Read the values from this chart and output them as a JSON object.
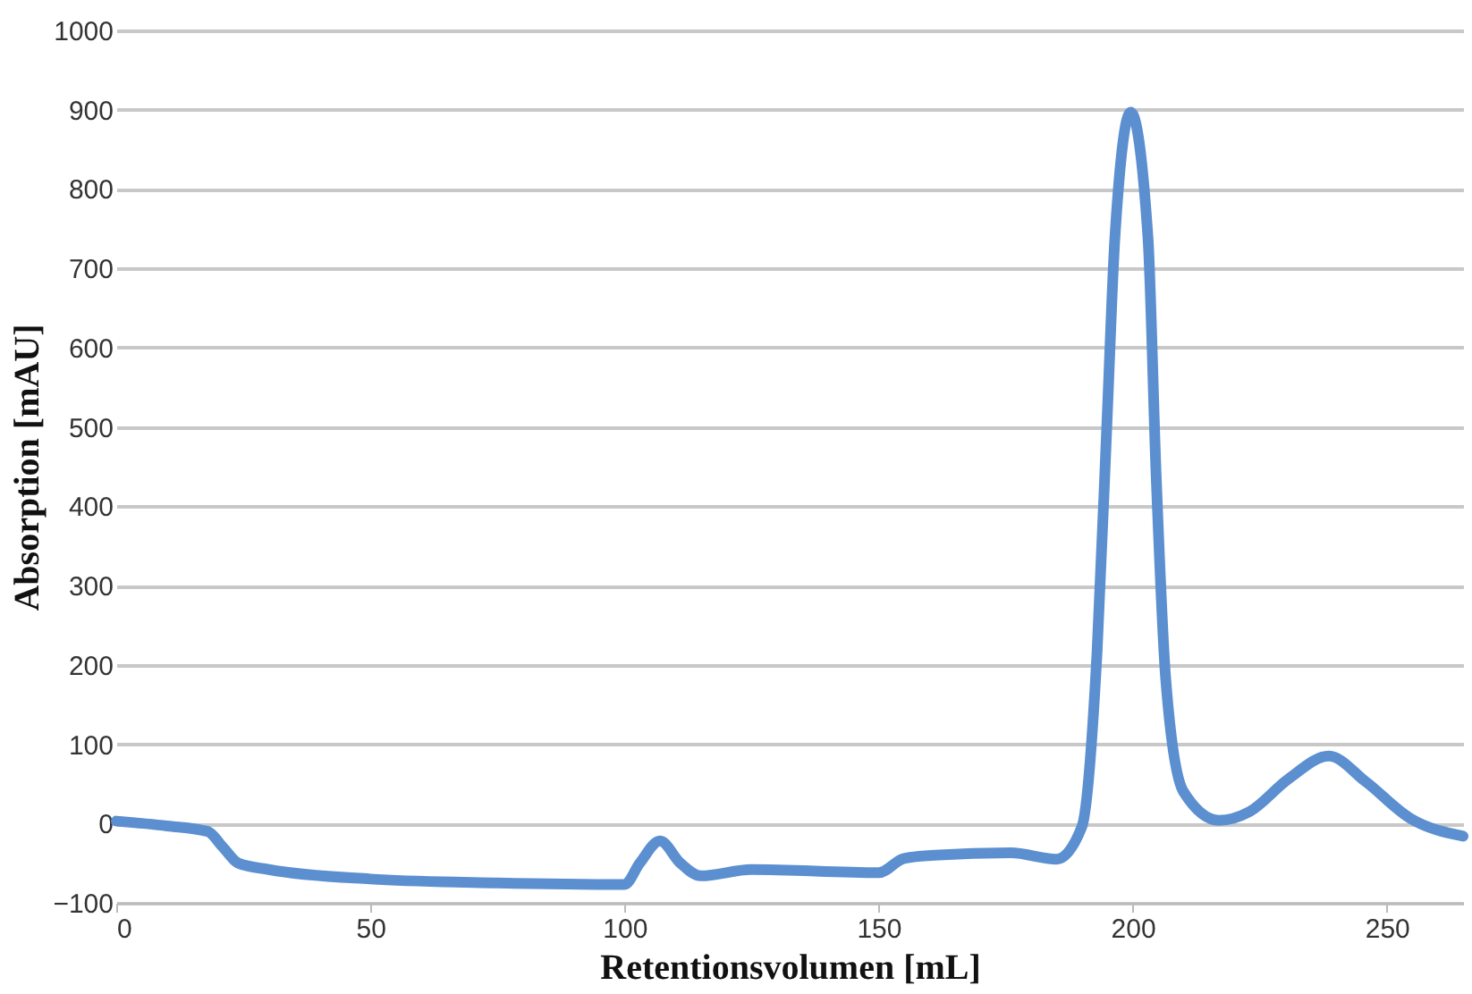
{
  "chart_data": {
    "type": "line",
    "xlabel": "Retentionsvolumen [mL]",
    "ylabel": "Absorption [mAU]",
    "x": [
      0,
      10,
      18,
      21,
      24,
      30,
      50,
      75,
      100,
      103,
      107,
      111,
      115,
      125,
      150,
      155,
      161,
      176,
      185,
      190,
      193,
      195,
      196.5,
      199.6,
      203,
      204.6,
      206.5,
      210,
      217,
      223,
      230.6,
      238.6,
      245.8,
      254.5,
      265
    ],
    "series": [
      {
        "color": "#5b8fd0",
        "values": [
          3,
          -3,
          -10,
          -30,
          -50,
          -58,
          -70,
          -75,
          -77,
          -50,
          -22,
          -50,
          -66,
          -58,
          -62,
          -44,
          -40,
          -37,
          -45,
          -4,
          218,
          516,
          739,
          897,
          739,
          441,
          182,
          40,
          4,
          15,
          56,
          85,
          53,
          7,
          -16
        ]
      }
    ],
    "xlim": [
      0,
      265
    ],
    "xticks": [
      0,
      50,
      100,
      150,
      200,
      250
    ],
    "ylim": [
      -100,
      1000
    ],
    "yticks": [
      -100,
      0,
      100,
      200,
      300,
      400,
      500,
      600,
      700,
      800,
      900,
      1000
    ],
    "grid": "y"
  }
}
